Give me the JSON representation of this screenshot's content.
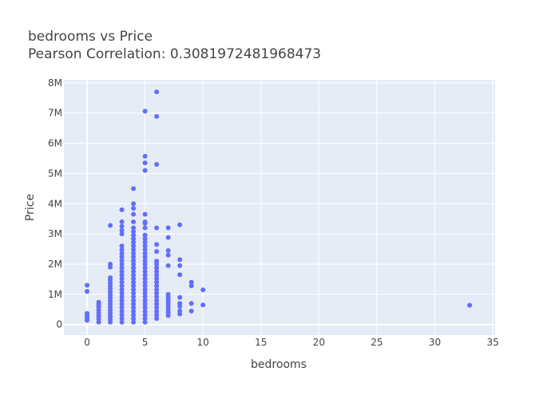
{
  "chart_data": {
    "type": "scatter",
    "title": "bedrooms vs Price",
    "subtitle": "Pearson Correlation: 0.3081972481968473",
    "xlabel": "bedrooms",
    "ylabel": "Price",
    "xlim": [
      -2,
      35.2
    ],
    "ylim": [
      -350000,
      8100000
    ],
    "x_ticks": [
      0,
      5,
      10,
      15,
      20,
      25,
      30,
      35
    ],
    "x_tick_labels": [
      "0",
      "5",
      "10",
      "15",
      "20",
      "25",
      "30",
      "35"
    ],
    "y_ticks": [
      0,
      1000000,
      2000000,
      3000000,
      4000000,
      5000000,
      6000000,
      7000000,
      8000000
    ],
    "y_tick_labels": [
      "0",
      "1M",
      "2M",
      "3M",
      "4M",
      "5M",
      "6M",
      "7M",
      "8M"
    ],
    "grid": true,
    "colors": {
      "marker": "#636efa",
      "plot_bg": "#e5ecf6",
      "grid": "#ffffff",
      "text": "#444444"
    },
    "series": [
      {
        "values": [
          [
            0,
            140000
          ],
          [
            0,
            200000
          ],
          [
            0,
            260000
          ],
          [
            0,
            320000
          ],
          [
            0,
            370000
          ],
          [
            0,
            1100000
          ],
          [
            0,
            1300000
          ],
          [
            1,
            80000
          ],
          [
            1,
            180000
          ],
          [
            1,
            280000
          ],
          [
            1,
            380000
          ],
          [
            1,
            480000
          ],
          [
            1,
            580000
          ],
          [
            1,
            660000
          ],
          [
            1,
            740000
          ],
          [
            2,
            80000
          ],
          [
            2,
            180000
          ],
          [
            2,
            280000
          ],
          [
            2,
            380000
          ],
          [
            2,
            480000
          ],
          [
            2,
            580000
          ],
          [
            2,
            680000
          ],
          [
            2,
            780000
          ],
          [
            2,
            880000
          ],
          [
            2,
            980000
          ],
          [
            2,
            1080000
          ],
          [
            2,
            1180000
          ],
          [
            2,
            1280000
          ],
          [
            2,
            1380000
          ],
          [
            2,
            1480000
          ],
          [
            2,
            1550000
          ],
          [
            2,
            1900000
          ],
          [
            2,
            2000000
          ],
          [
            2,
            3280000
          ],
          [
            3,
            80000
          ],
          [
            3,
            200000
          ],
          [
            3,
            320000
          ],
          [
            3,
            440000
          ],
          [
            3,
            560000
          ],
          [
            3,
            680000
          ],
          [
            3,
            800000
          ],
          [
            3,
            920000
          ],
          [
            3,
            1040000
          ],
          [
            3,
            1160000
          ],
          [
            3,
            1280000
          ],
          [
            3,
            1400000
          ],
          [
            3,
            1520000
          ],
          [
            3,
            1640000
          ],
          [
            3,
            1760000
          ],
          [
            3,
            1880000
          ],
          [
            3,
            2000000
          ],
          [
            3,
            2120000
          ],
          [
            3,
            2240000
          ],
          [
            3,
            2360000
          ],
          [
            3,
            2480000
          ],
          [
            3,
            2600000
          ],
          [
            3,
            3000000
          ],
          [
            3,
            3120000
          ],
          [
            3,
            3250000
          ],
          [
            3,
            3400000
          ],
          [
            3,
            3800000
          ],
          [
            4,
            80000
          ],
          [
            4,
            200000
          ],
          [
            4,
            320000
          ],
          [
            4,
            440000
          ],
          [
            4,
            560000
          ],
          [
            4,
            680000
          ],
          [
            4,
            800000
          ],
          [
            4,
            920000
          ],
          [
            4,
            1040000
          ],
          [
            4,
            1160000
          ],
          [
            4,
            1280000
          ],
          [
            4,
            1400000
          ],
          [
            4,
            1520000
          ],
          [
            4,
            1640000
          ],
          [
            4,
            1760000
          ],
          [
            4,
            1880000
          ],
          [
            4,
            2000000
          ],
          [
            4,
            2120000
          ],
          [
            4,
            2240000
          ],
          [
            4,
            2360000
          ],
          [
            4,
            2480000
          ],
          [
            4,
            2600000
          ],
          [
            4,
            2720000
          ],
          [
            4,
            2840000
          ],
          [
            4,
            2960000
          ],
          [
            4,
            3080000
          ],
          [
            4,
            3200000
          ],
          [
            4,
            3400000
          ],
          [
            4,
            3650000
          ],
          [
            4,
            3850000
          ],
          [
            4,
            4000000
          ],
          [
            4,
            4500000
          ],
          [
            5,
            80000
          ],
          [
            5,
            200000
          ],
          [
            5,
            320000
          ],
          [
            5,
            440000
          ],
          [
            5,
            560000
          ],
          [
            5,
            680000
          ],
          [
            5,
            800000
          ],
          [
            5,
            920000
          ],
          [
            5,
            1040000
          ],
          [
            5,
            1160000
          ],
          [
            5,
            1280000
          ],
          [
            5,
            1400000
          ],
          [
            5,
            1520000
          ],
          [
            5,
            1640000
          ],
          [
            5,
            1760000
          ],
          [
            5,
            1880000
          ],
          [
            5,
            2000000
          ],
          [
            5,
            2120000
          ],
          [
            5,
            2240000
          ],
          [
            5,
            2360000
          ],
          [
            5,
            2480000
          ],
          [
            5,
            2600000
          ],
          [
            5,
            2720000
          ],
          [
            5,
            2840000
          ],
          [
            5,
            2960000
          ],
          [
            5,
            3200000
          ],
          [
            5,
            3350000
          ],
          [
            5,
            3400000
          ],
          [
            5,
            3650000
          ],
          [
            5,
            5100000
          ],
          [
            5,
            5350000
          ],
          [
            5,
            5570000
          ],
          [
            5,
            7060000
          ],
          [
            6,
            200000
          ],
          [
            6,
            320000
          ],
          [
            6,
            440000
          ],
          [
            6,
            560000
          ],
          [
            6,
            680000
          ],
          [
            6,
            800000
          ],
          [
            6,
            920000
          ],
          [
            6,
            1040000
          ],
          [
            6,
            1160000
          ],
          [
            6,
            1280000
          ],
          [
            6,
            1400000
          ],
          [
            6,
            1520000
          ],
          [
            6,
            1640000
          ],
          [
            6,
            1760000
          ],
          [
            6,
            1880000
          ],
          [
            6,
            2000000
          ],
          [
            6,
            2100000
          ],
          [
            6,
            2420000
          ],
          [
            6,
            2650000
          ],
          [
            6,
            3200000
          ],
          [
            6,
            5300000
          ],
          [
            6,
            6890000
          ],
          [
            6,
            7700000
          ],
          [
            7,
            300000
          ],
          [
            7,
            400000
          ],
          [
            7,
            500000
          ],
          [
            7,
            600000
          ],
          [
            7,
            700000
          ],
          [
            7,
            800000
          ],
          [
            7,
            900000
          ],
          [
            7,
            1000000
          ],
          [
            7,
            1950000
          ],
          [
            7,
            2300000
          ],
          [
            7,
            2450000
          ],
          [
            7,
            2880000
          ],
          [
            7,
            3200000
          ],
          [
            8,
            350000
          ],
          [
            8,
            450000
          ],
          [
            8,
            600000
          ],
          [
            8,
            700000
          ],
          [
            8,
            900000
          ],
          [
            8,
            1650000
          ],
          [
            8,
            1950000
          ],
          [
            8,
            2150000
          ],
          [
            8,
            3300000
          ],
          [
            9,
            450000
          ],
          [
            9,
            700000
          ],
          [
            9,
            1280000
          ],
          [
            9,
            1400000
          ],
          [
            10,
            650000
          ],
          [
            10,
            1150000
          ],
          [
            33,
            640000
          ]
        ]
      }
    ]
  }
}
